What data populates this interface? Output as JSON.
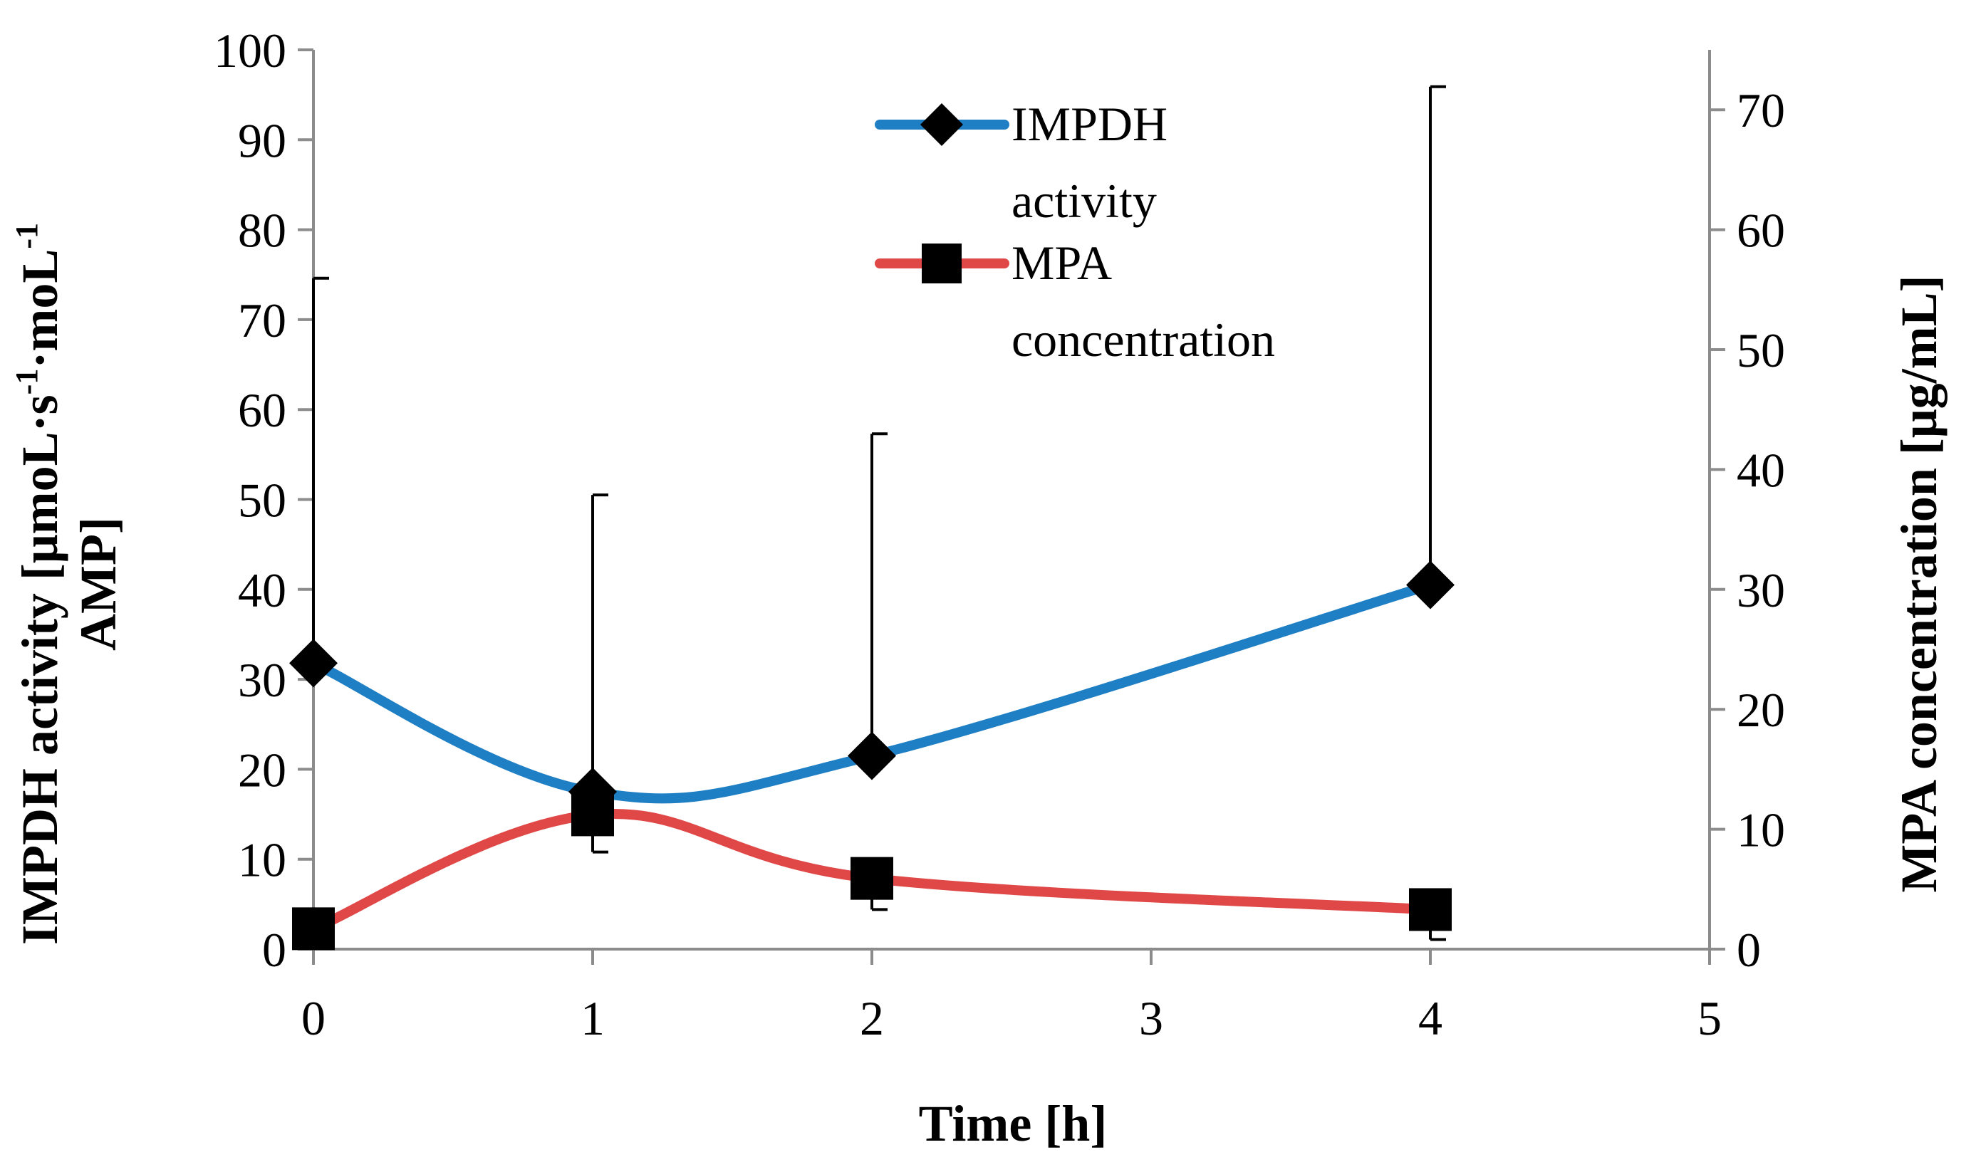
{
  "chart_data": {
    "type": "line",
    "title": "",
    "xlabel": "Time [h]",
    "ylabel_left_line1": "IMPDH activity [μmoL·s",
    "ylabel_left_sup1": "-1",
    "ylabel_left_mid": "·moL",
    "ylabel_left_sup2": "-1",
    "ylabel_left_line2": "AMP]",
    "ylabel_right": "MPA concentration [μg/mL]",
    "xlim": [
      0,
      5
    ],
    "ylim_left": [
      0,
      100
    ],
    "ylim_right": [
      0,
      75
    ],
    "x_ticks": [
      "0",
      "1",
      "2",
      "3",
      "4",
      "5"
    ],
    "y_left_ticks": [
      "0",
      "10",
      "20",
      "30",
      "40",
      "50",
      "60",
      "70",
      "80",
      "90",
      "100"
    ],
    "y_right_ticks": [
      "0",
      "10",
      "20",
      "30",
      "40",
      "50",
      "60",
      "70"
    ],
    "series": [
      {
        "name": "IMPDH activity",
        "legend_line1": "IMPDH",
        "legend_line2": "activity",
        "axis": "left",
        "marker": "diamond",
        "color": "#1f7fc4",
        "x": [
          0,
          1,
          2,
          4
        ],
        "y": [
          31.8,
          17.5,
          21.5,
          40.5
        ],
        "err_upper": [
          42.8,
          33.0,
          35.8,
          55.4
        ]
      },
      {
        "name": "MPA concentration",
        "legend_line1": "MPA",
        "legend_line2": "concentration",
        "axis": "right",
        "marker": "square",
        "color": "#e04848",
        "x": [
          0,
          1,
          2,
          4
        ],
        "y": [
          1.7,
          11.2,
          5.9,
          3.3
        ],
        "err_lower": [
          0,
          3.1,
          2.6,
          2.5
        ]
      }
    ]
  }
}
